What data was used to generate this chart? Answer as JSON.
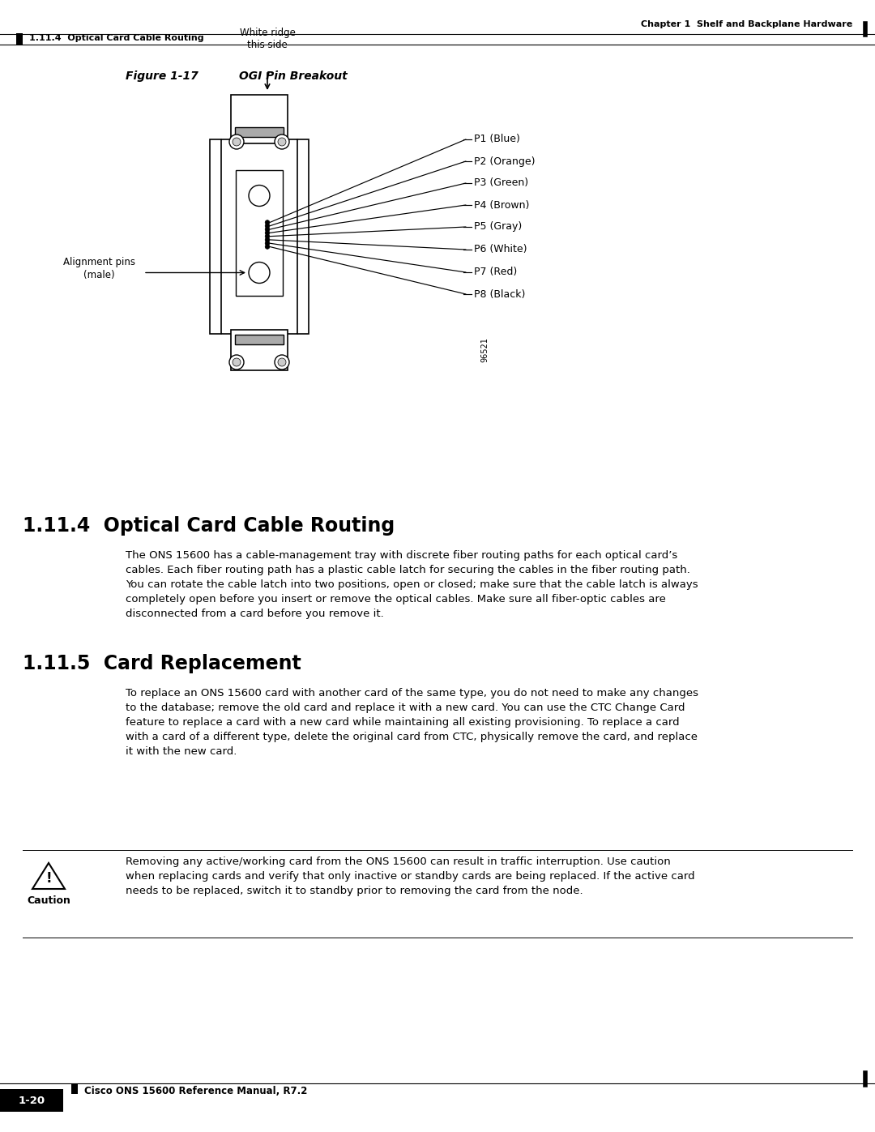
{
  "page_header_right": "Chapter 1  Shelf and Backplane Hardware",
  "page_header_left": "1.11.4  Optical Card Cable Routing",
  "figure_label": "Figure 1-17",
  "figure_title": "OGI Pin Breakout",
  "white_ridge_label": "White ridge\nthis side",
  "alignment_pins_label": "Alignment pins\n(male)",
  "pin_labels": [
    "P1 (Blue)",
    "P2 (Orange)",
    "P3 (Green)",
    "P4 (Brown)",
    "P5 (Gray)",
    "P6 (White)",
    "P7 (Red)",
    "P8 (Black)"
  ],
  "serial_number": "96521",
  "section_1114_title": "1.11.4  Optical Card Cable Routing",
  "section_1114_body": "The ONS 15600 has a cable-management tray with discrete fiber routing paths for each optical card’s\ncables. Each fiber routing path has a plastic cable latch for securing the cables in the fiber routing path.\nYou can rotate the cable latch into two positions, open or closed; make sure that the cable latch is always\ncompletely open before you insert or remove the optical cables. Make sure all fiber-optic cables are\ndisconnected from a card before you remove it.",
  "section_1115_title": "1.11.5  Card Replacement",
  "section_1115_body": "To replace an ONS 15600 card with another card of the same type, you do not need to make any changes\nto the database; remove the old card and replace it with a new card. You can use the CTC Change Card\nfeature to replace a card with a new card while maintaining all existing provisioning. To replace a card\nwith a card of a different type, delete the original card from CTC, physically remove the card, and replace\nit with the new card.",
  "caution_label": "Caution",
  "caution_text": "Removing any active/working card from the ONS 15600 can result in traffic interruption. Use caution\nwhen replacing cards and verify that only inactive or standby cards are being replaced. If the active card\nneeds to be replaced, switch it to standby prior to removing the card from the node.",
  "footer_left": "Cisco ONS 15600 Reference Manual, R7.2",
  "footer_page": "1-20",
  "bg_color": "#ffffff",
  "text_color": "#000000",
  "line_color": "#000000",
  "gray_color": "#888888",
  "light_gray": "#cccccc"
}
